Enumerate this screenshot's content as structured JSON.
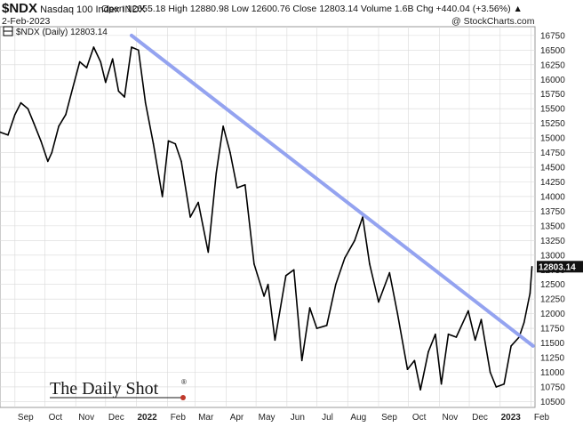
{
  "header": {
    "symbol": "$NDX",
    "name": "Nasdaq 100 Index",
    "exchange": "INDX",
    "date": "2-Feb-2023",
    "ohlc": "Open 12655.18  High 12880.98  Low 12600.76  Close 12803.14  Volume 1.6B  Chg +440.04 (+3.56%) ▲",
    "credit": "@ StockCharts.com"
  },
  "legend_label": "$NDX (Daily) 12803.14",
  "last_price_label": "12803.14",
  "watermark": {
    "text": "The Daily Shot",
    "mark": "®"
  },
  "colors": {
    "price": "#000000",
    "trendline": "#8f9ff0",
    "grid": "#d9d9d9",
    "badge": "#111111"
  },
  "chart_data": {
    "type": "line",
    "title": "",
    "xlabel": "",
    "ylabel": "",
    "ylim": [
      10400,
      16900
    ],
    "yticks": [
      10500,
      10750,
      11000,
      11250,
      11500,
      11750,
      12000,
      12250,
      12500,
      12750,
      13000,
      13250,
      13500,
      13750,
      14000,
      14250,
      14500,
      14750,
      15000,
      15250,
      15500,
      15750,
      16000,
      16250,
      16500,
      16750
    ],
    "xticks": [
      {
        "label": "Sep",
        "x": "2021-09-01"
      },
      {
        "label": "Oct",
        "x": "2021-10-01"
      },
      {
        "label": "Nov",
        "x": "2021-11-01"
      },
      {
        "label": "Dec",
        "x": "2021-12-01"
      },
      {
        "label": "2022",
        "x": "2022-01-01",
        "bold": true
      },
      {
        "label": "Feb",
        "x": "2022-02-01"
      },
      {
        "label": "Mar",
        "x": "2022-03-01"
      },
      {
        "label": "Apr",
        "x": "2022-04-01"
      },
      {
        "label": "May",
        "x": "2022-05-01"
      },
      {
        "label": "Jun",
        "x": "2022-06-01"
      },
      {
        "label": "Jul",
        "x": "2022-07-01"
      },
      {
        "label": "Aug",
        "x": "2022-08-01"
      },
      {
        "label": "Sep",
        "x": "2022-09-01"
      },
      {
        "label": "Oct",
        "x": "2022-10-01"
      },
      {
        "label": "Nov",
        "x": "2022-11-01"
      },
      {
        "label": "Dec",
        "x": "2022-12-01"
      },
      {
        "label": "2023",
        "x": "2023-01-01",
        "bold": true
      },
      {
        "label": "Feb",
        "x": "2023-02-01"
      }
    ],
    "xlim": [
      "2021-08-17",
      "2023-02-05"
    ],
    "series": [
      {
        "name": "$NDX (Daily)",
        "points": [
          [
            "2021-08-17",
            15100
          ],
          [
            "2021-08-25",
            15050
          ],
          [
            "2021-09-01",
            15400
          ],
          [
            "2021-09-07",
            15600
          ],
          [
            "2021-09-14",
            15500
          ],
          [
            "2021-09-20",
            15250
          ],
          [
            "2021-09-27",
            14950
          ],
          [
            "2021-10-04",
            14600
          ],
          [
            "2021-10-08",
            14750
          ],
          [
            "2021-10-15",
            15200
          ],
          [
            "2021-10-22",
            15400
          ],
          [
            "2021-10-29",
            15850
          ],
          [
            "2021-11-05",
            16300
          ],
          [
            "2021-11-12",
            16200
          ],
          [
            "2021-11-19",
            16550
          ],
          [
            "2021-11-26",
            16300
          ],
          [
            "2021-12-01",
            15950
          ],
          [
            "2021-12-08",
            16350
          ],
          [
            "2021-12-14",
            15800
          ],
          [
            "2021-12-20",
            15700
          ],
          [
            "2021-12-27",
            16550
          ],
          [
            "2022-01-03",
            16500
          ],
          [
            "2022-01-10",
            15600
          ],
          [
            "2022-01-18",
            14900
          ],
          [
            "2022-01-27",
            14000
          ],
          [
            "2022-02-02",
            14950
          ],
          [
            "2022-02-09",
            14900
          ],
          [
            "2022-02-15",
            14600
          ],
          [
            "2022-02-24",
            13650
          ],
          [
            "2022-03-04",
            13900
          ],
          [
            "2022-03-14",
            13050
          ],
          [
            "2022-03-22",
            14400
          ],
          [
            "2022-03-29",
            15200
          ],
          [
            "2022-04-05",
            14750
          ],
          [
            "2022-04-12",
            14150
          ],
          [
            "2022-04-20",
            14200
          ],
          [
            "2022-04-29",
            12850
          ],
          [
            "2022-05-09",
            12300
          ],
          [
            "2022-05-13",
            12500
          ],
          [
            "2022-05-20",
            11550
          ],
          [
            "2022-05-31",
            12650
          ],
          [
            "2022-06-08",
            12750
          ],
          [
            "2022-06-16",
            11200
          ],
          [
            "2022-06-24",
            12100
          ],
          [
            "2022-07-01",
            11750
          ],
          [
            "2022-07-11",
            11800
          ],
          [
            "2022-07-20",
            12500
          ],
          [
            "2022-07-29",
            12950
          ],
          [
            "2022-08-08",
            13250
          ],
          [
            "2022-08-16",
            13650
          ],
          [
            "2022-08-23",
            12850
          ],
          [
            "2022-09-01",
            12200
          ],
          [
            "2022-09-12",
            12700
          ],
          [
            "2022-09-20",
            12000
          ],
          [
            "2022-09-30",
            11050
          ],
          [
            "2022-10-07",
            11200
          ],
          [
            "2022-10-13",
            10700
          ],
          [
            "2022-10-21",
            11350
          ],
          [
            "2022-10-28",
            11650
          ],
          [
            "2022-11-03",
            10800
          ],
          [
            "2022-11-10",
            11650
          ],
          [
            "2022-11-18",
            11600
          ],
          [
            "2022-11-30",
            12050
          ],
          [
            "2022-12-07",
            11550
          ],
          [
            "2022-12-13",
            11900
          ],
          [
            "2022-12-22",
            11000
          ],
          [
            "2022-12-28",
            10750
          ],
          [
            "2023-01-05",
            10800
          ],
          [
            "2023-01-12",
            11450
          ],
          [
            "2023-01-20",
            11600
          ],
          [
            "2023-01-25",
            11850
          ],
          [
            "2023-01-31",
            12350
          ],
          [
            "2023-02-02",
            12803.14
          ]
        ]
      },
      {
        "name": "Trendline",
        "points": [
          [
            "2021-12-27",
            16750
          ],
          [
            "2023-02-03",
            11450
          ]
        ]
      }
    ],
    "grid": true,
    "legend": "top-left"
  }
}
